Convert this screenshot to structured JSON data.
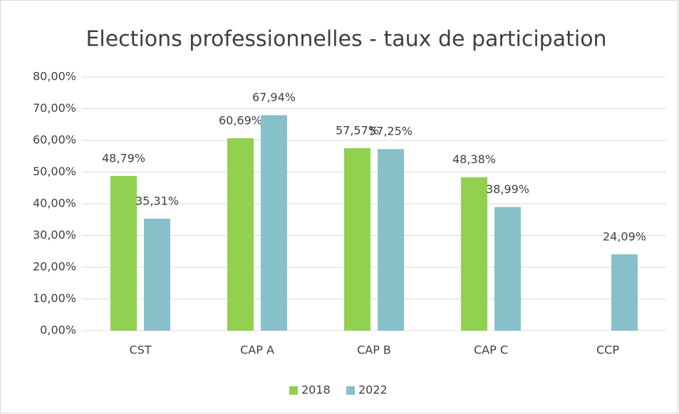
{
  "chart_data": {
    "type": "bar",
    "title": "Elections professionnelles - taux de participation",
    "categories": [
      "CST",
      "CAP A",
      "CAP B",
      "CAP C",
      "CCP"
    ],
    "series": [
      {
        "name": "2018",
        "color": "#92d050",
        "values": [
          48.79,
          60.69,
          57.57,
          48.38,
          null
        ],
        "value_labels": [
          "48,79%",
          "60,69%",
          "57,57%",
          "48,38%",
          null
        ]
      },
      {
        "name": "2022",
        "color": "#88c0ca",
        "values": [
          35.31,
          67.94,
          57.25,
          38.99,
          24.09
        ],
        "value_labels": [
          "35,31%",
          "67,94%",
          "57,25%",
          "38,99%",
          "24,09%"
        ]
      }
    ],
    "ylim": [
      0,
      80
    ],
    "yticks": [
      {
        "value": 0,
        "label": "0,00%"
      },
      {
        "value": 10,
        "label": "10,00%"
      },
      {
        "value": 20,
        "label": "20,00%"
      },
      {
        "value": 30,
        "label": "30,00%"
      },
      {
        "value": 40,
        "label": "40,00%"
      },
      {
        "value": 50,
        "label": "50,00%"
      },
      {
        "value": 60,
        "label": "60,00%"
      },
      {
        "value": 70,
        "label": "70,00%"
      },
      {
        "value": 80,
        "label": "80,00%"
      }
    ],
    "grid": true,
    "legend": "bottom"
  }
}
